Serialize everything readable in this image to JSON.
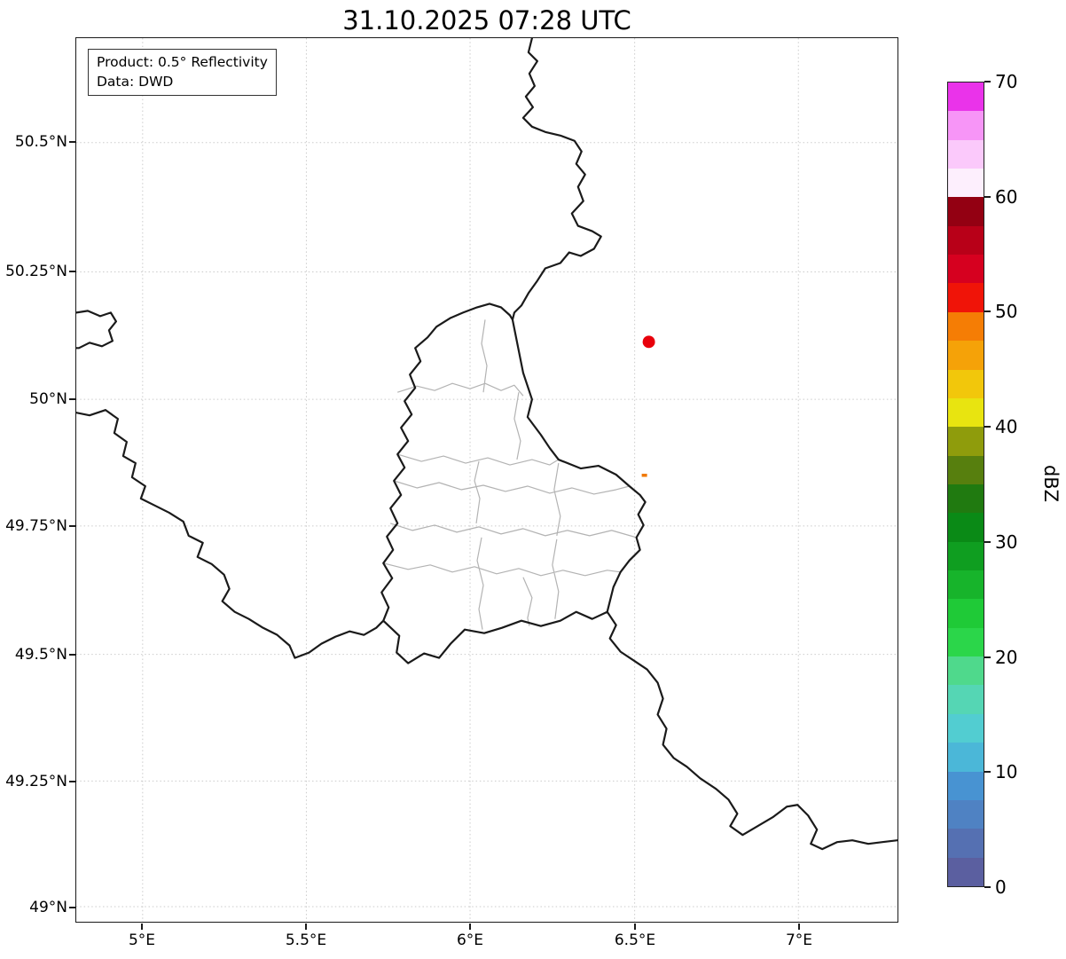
{
  "title": "31.10.2025 07:28 UTC",
  "info_box": {
    "line1": "Product: 0.5° Reflectivity",
    "line2": "Data: DWD"
  },
  "axes": {
    "lat_ticks": [
      "50.5°N",
      "50.25°N",
      "50°N",
      "49.75°N",
      "49.5°N",
      "49.25°N",
      "49°N"
    ],
    "lon_ticks": [
      "5°E",
      "5.5°E",
      "6°E",
      "6.5°E",
      "7°E"
    ]
  },
  "colorbar": {
    "label": "dBZ",
    "ticks": [
      "0",
      "10",
      "20",
      "30",
      "40",
      "50",
      "60",
      "70"
    ],
    "bands": [
      "#5b5fa0",
      "#5570b2",
      "#4f82c3",
      "#4893d2",
      "#4bb7d8",
      "#52cdd1",
      "#55d6b4",
      "#4fd98c",
      "#2bd64a",
      "#1fca37",
      "#17b42b",
      "#0f9e20",
      "#0a8a16",
      "#207a10",
      "#577f0e",
      "#8f9c0c",
      "#e8e410",
      "#f2c70b",
      "#f5a208",
      "#f57d05",
      "#f01408",
      "#d6001f",
      "#b80018",
      "#930012",
      "#fdeffd",
      "#fbc9fb",
      "#f795f7",
      "#ea33ea"
    ]
  },
  "map": {
    "border_color": "#1a1a1a",
    "canton_border_color": "#b3b3b3",
    "gridline_color": "#cbcbcb"
  },
  "markers": {
    "strong_echo_color": "#e8000b",
    "weak_echo_color": "#f07800"
  }
}
